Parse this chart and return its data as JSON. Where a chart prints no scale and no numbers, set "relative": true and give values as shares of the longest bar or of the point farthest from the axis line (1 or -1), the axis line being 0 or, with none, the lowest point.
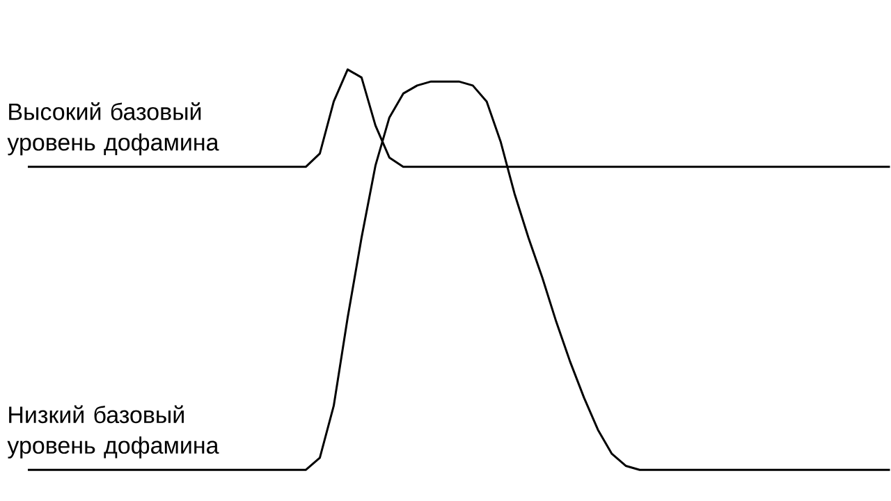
{
  "chart_data": {
    "type": "line",
    "relative": true,
    "categories": [
      null,
      null,
      null,
      null,
      null,
      null,
      null,
      null,
      null,
      null,
      null,
      null,
      null,
      null,
      null,
      null,
      null,
      null,
      null,
      null,
      null,
      null,
      null,
      null,
      null,
      null,
      null,
      null,
      null,
      null,
      null,
      null,
      null,
      null,
      null,
      null,
      null,
      null,
      null,
      null,
      null,
      null,
      null,
      null,
      null,
      null,
      null,
      null,
      null,
      null,
      null,
      null,
      null,
      null,
      null,
      null,
      null,
      null,
      null,
      null,
      null,
      null,
      null
    ],
    "series": [
      {
        "name": "Высокий базовый уровень дофамина",
        "color": "#000000",
        "values": [
          0.757,
          0.757,
          0.757,
          0.757,
          0.757,
          0.757,
          0.757,
          0.757,
          0.757,
          0.757,
          0.757,
          0.757,
          0.757,
          0.757,
          0.757,
          0.757,
          0.757,
          0.757,
          0.757,
          0.757,
          0.757,
          0.79,
          0.92,
          1,
          0.98,
          0.86,
          0.78,
          0.757,
          0.757,
          0.757,
          0.757,
          0.757,
          0.757,
          0.757,
          0.757,
          0.757,
          0.757,
          0.757,
          0.757,
          0.757,
          0.757,
          0.757,
          0.757,
          0.757,
          0.757,
          0.757,
          0.757,
          0.757,
          0.757,
          0.757,
          0.757,
          0.757,
          0.757,
          0.757,
          0.757,
          0.757,
          0.757,
          0.757,
          0.757,
          0.757,
          0.757,
          0.757,
          0.757
        ]
      },
      {
        "name": "Низкий базовый уровень дофамина",
        "color": "#000000",
        "values": [
          0,
          0,
          0,
          0,
          0,
          0,
          0,
          0,
          0,
          0,
          0,
          0,
          0,
          0,
          0,
          0,
          0,
          0,
          0,
          0,
          0,
          0.03,
          0.16,
          0.38,
          0.58,
          0.76,
          0.88,
          0.94,
          0.96,
          0.97,
          0.97,
          0.97,
          0.96,
          0.92,
          0.82,
          0.69,
          0.58,
          0.48,
          0.37,
          0.27,
          0.18,
          0.1,
          0.04,
          0.01,
          0,
          0,
          0,
          0,
          0,
          0,
          0,
          0,
          0,
          0,
          0,
          0,
          0,
          0,
          0,
          0,
          0,
          0,
          0
        ]
      }
    ],
    "marker": "none",
    "line_style": "solid"
  }
}
